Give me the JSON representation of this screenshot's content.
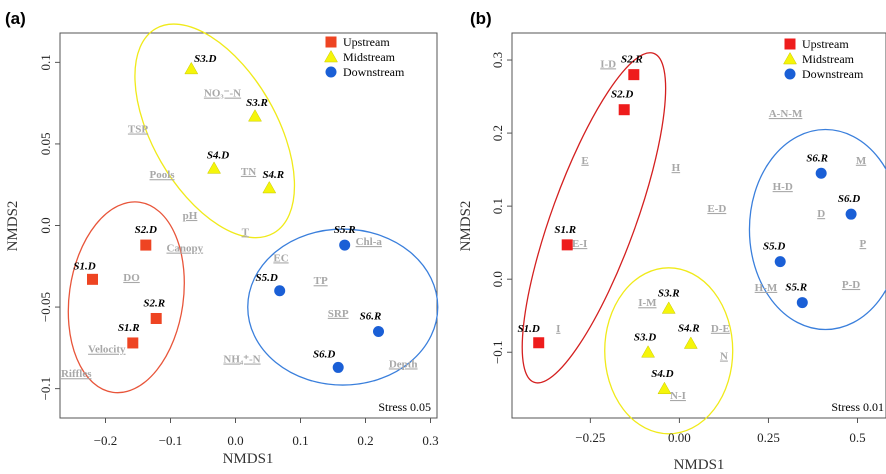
{
  "chart_data": [
    {
      "panel": "(a)",
      "type": "scatter",
      "xlabel": "NMDS1",
      "ylabel": "NMDS2",
      "xlim": [
        -0.27,
        0.31
      ],
      "ylim": [
        -0.118,
        0.118
      ],
      "xticks": [
        -0.2,
        -0.1,
        0.0,
        0.1,
        0.2,
        0.3
      ],
      "xtick_labels": [
        "−0.2",
        "−0.1",
        "0.0",
        "0.1",
        "0.2",
        "0.3"
      ],
      "yticks": [
        -0.1,
        -0.05,
        0.0,
        0.05,
        0.1
      ],
      "ytick_labels": [
        "−0.1",
        "−0.05",
        "0.0",
        "0.05",
        "0.1"
      ],
      "stress": "Stress 0.05",
      "legend": [
        {
          "name": "Upstream",
          "color": "#ee4422",
          "marker": "square"
        },
        {
          "name": "Midstream",
          "color": "#f5f50a",
          "marker": "triangle"
        },
        {
          "name": "Downstream",
          "color": "#1a5fd6",
          "marker": "circle"
        }
      ],
      "series": [
        {
          "name": "Upstream",
          "points": [
            {
              "label": "S1.D",
              "x": -0.22,
              "y": -0.033
            },
            {
              "label": "S2.D",
              "x": -0.138,
              "y": -0.012
            },
            {
              "label": "S2.R",
              "x": -0.122,
              "y": -0.057
            },
            {
              "label": "S1.R",
              "x": -0.158,
              "y": -0.072
            }
          ]
        },
        {
          "name": "Midstream",
          "points": [
            {
              "label": "S3.D",
              "x": -0.068,
              "y": 0.096
            },
            {
              "label": "S3.R",
              "x": 0.03,
              "y": 0.067
            },
            {
              "label": "S4.D",
              "x": -0.033,
              "y": 0.035
            },
            {
              "label": "S4.R",
              "x": 0.052,
              "y": 0.023
            }
          ]
        },
        {
          "name": "Downstream",
          "points": [
            {
              "label": "S5.R",
              "x": 0.168,
              "y": -0.012
            },
            {
              "label": "S5.D",
              "x": 0.068,
              "y": -0.04
            },
            {
              "label": "S6.R",
              "x": 0.22,
              "y": -0.065
            },
            {
              "label": "S6.D",
              "x": 0.158,
              "y": -0.087
            }
          ]
        }
      ],
      "variables": [
        {
          "text": "TSP",
          "x": -0.15,
          "y": 0.057
        },
        {
          "text": "NO₃⁻-N",
          "x": -0.02,
          "y": 0.079
        },
        {
          "text": "TN",
          "x": 0.02,
          "y": 0.031
        },
        {
          "text": "Pools",
          "x": -0.113,
          "y": 0.029
        },
        {
          "text": "pH",
          "x": -0.07,
          "y": 0.004
        },
        {
          "text": "T",
          "x": 0.015,
          "y": -0.006
        },
        {
          "text": "Canopy",
          "x": -0.078,
          "y": -0.016
        },
        {
          "text": "EC",
          "x": 0.07,
          "y": -0.022
        },
        {
          "text": "Chl-a",
          "x": 0.205,
          "y": -0.012
        },
        {
          "text": "DO",
          "x": -0.16,
          "y": -0.034
        },
        {
          "text": "TP",
          "x": 0.131,
          "y": -0.036
        },
        {
          "text": "SRP",
          "x": 0.158,
          "y": -0.056
        },
        {
          "text": "Velocity",
          "x": -0.198,
          "y": -0.078
        },
        {
          "text": "NH₄⁺-N",
          "x": 0.01,
          "y": -0.084
        },
        {
          "text": "Depth",
          "x": 0.258,
          "y": -0.087
        },
        {
          "text": "Riffles",
          "x": -0.245,
          "y": -0.093
        }
      ],
      "ellipses": [
        {
          "group": "Upstream",
          "color": "#e8553a",
          "cx": -0.168,
          "cy": -0.044,
          "rx_px": 57,
          "ry_px": 96,
          "rotate": 8
        },
        {
          "group": "Midstream",
          "color": "#f0ea1a",
          "cx": -0.032,
          "cy": 0.058,
          "rx_px": 62,
          "ry_px": 118,
          "rotate": -30
        },
        {
          "group": "Downstream",
          "color": "#3a7fdc",
          "cx": 0.165,
          "cy": -0.05,
          "rx_px": 95,
          "ry_px": 78,
          "rotate": 0
        }
      ]
    },
    {
      "panel": "(b)",
      "type": "scatter",
      "xlabel": "NMDS1",
      "ylabel": "NMDS2",
      "xlim": [
        -0.47,
        0.58
      ],
      "ylim": [
        -0.19,
        0.337
      ],
      "xticks": [
        -0.25,
        0.0,
        0.25,
        0.5
      ],
      "xtick_labels": [
        "−0.25",
        "0.00",
        "0.25",
        "0.5"
      ],
      "yticks": [
        -0.1,
        0.0,
        0.1,
        0.2,
        0.3
      ],
      "ytick_labels": [
        "−0.1",
        "0.0",
        "0.1",
        "0.2",
        "0.3"
      ],
      "stress": "Stress 0.01",
      "legend": [
        {
          "name": "Upstream",
          "color": "#ee1c1c",
          "marker": "square"
        },
        {
          "name": "Midstream",
          "color": "#f5f50a",
          "marker": "triangle"
        },
        {
          "name": "Downstream",
          "color": "#1a5fd6",
          "marker": "circle"
        }
      ],
      "series": [
        {
          "name": "Upstream",
          "points": [
            {
              "label": "S2.R",
              "x": -0.128,
              "y": 0.28
            },
            {
              "label": "S2.D",
              "x": -0.155,
              "y": 0.232
            },
            {
              "label": "S1.R",
              "x": -0.315,
              "y": 0.047
            },
            {
              "label": "S1.D",
              "x": -0.395,
              "y": -0.087
            }
          ]
        },
        {
          "name": "Midstream",
          "points": [
            {
              "label": "S3.R",
              "x": -0.03,
              "y": -0.04
            },
            {
              "label": "S4.R",
              "x": 0.032,
              "y": -0.088
            },
            {
              "label": "S3.D",
              "x": -0.088,
              "y": -0.1
            },
            {
              "label": "S4.D",
              "x": -0.042,
              "y": -0.15
            }
          ]
        },
        {
          "name": "Downstream",
          "points": [
            {
              "label": "S6.R",
              "x": 0.398,
              "y": 0.145
            },
            {
              "label": "S6.D",
              "x": 0.482,
              "y": 0.089
            },
            {
              "label": "S5.D",
              "x": 0.283,
              "y": 0.024
            },
            {
              "label": "S5.R",
              "x": 0.345,
              "y": -0.032
            }
          ]
        }
      ],
      "variables": [
        {
          "text": "I-D",
          "x": -0.2,
          "y": 0.29
        },
        {
          "text": "A-N-M",
          "x": 0.298,
          "y": 0.222
        },
        {
          "text": "E",
          "x": -0.265,
          "y": 0.158
        },
        {
          "text": "H",
          "x": -0.01,
          "y": 0.148
        },
        {
          "text": "M",
          "x": 0.51,
          "y": 0.158
        },
        {
          "text": "H-D",
          "x": 0.29,
          "y": 0.122
        },
        {
          "text": "E-D",
          "x": 0.105,
          "y": 0.092
        },
        {
          "text": "D",
          "x": 0.398,
          "y": 0.085
        },
        {
          "text": "E-I",
          "x": -0.28,
          "y": 0.044
        },
        {
          "text": "P",
          "x": 0.515,
          "y": 0.044
        },
        {
          "text": "H-M",
          "x": 0.243,
          "y": -0.016
        },
        {
          "text": "P-D",
          "x": 0.482,
          "y": -0.012
        },
        {
          "text": "I-M",
          "x": -0.09,
          "y": -0.037
        },
        {
          "text": "I",
          "x": -0.34,
          "y": -0.072
        },
        {
          "text": "D-E",
          "x": 0.115,
          "y": -0.072
        },
        {
          "text": "N",
          "x": 0.125,
          "y": -0.11
        },
        {
          "text": "N-I",
          "x": -0.004,
          "y": -0.164
        }
      ],
      "ellipses": [
        {
          "group": "Upstream",
          "color": "#d42020",
          "cx": -0.24,
          "cy": 0.084,
          "rx_px": 42,
          "ry_px": 175,
          "rotate": 20
        },
        {
          "group": "Midstream",
          "color": "#f0ea1a",
          "cx": -0.03,
          "cy": -0.098,
          "rx_px": 64,
          "ry_px": 83,
          "rotate": 0
        },
        {
          "group": "Downstream",
          "color": "#3a7fdc",
          "cx": 0.41,
          "cy": 0.068,
          "rx_px": 76,
          "ry_px": 100,
          "rotate": 0
        }
      ]
    }
  ]
}
